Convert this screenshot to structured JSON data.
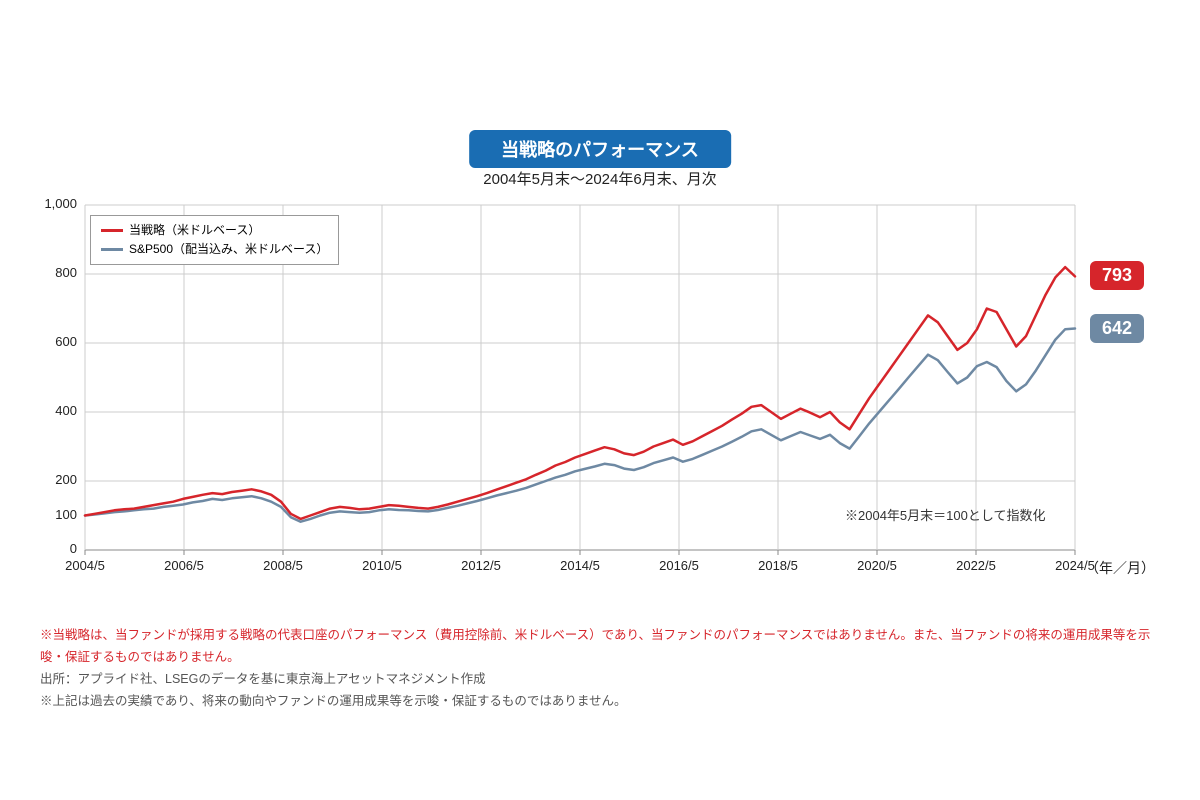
{
  "title": "当戦略のパフォーマンス",
  "subtitle": "2004年5月末～2024年6月末、月次",
  "chart": {
    "type": "line",
    "background_color": "#ffffff",
    "grid_color": "#cccccc",
    "axis_color": "#888888",
    "ylim": [
      0,
      1000
    ],
    "ytick_step": 200,
    "yticks": [
      0,
      100,
      200,
      400,
      600,
      800,
      1000
    ],
    "y_fontsize": 13,
    "x_labels": [
      "2004/5",
      "2006/5",
      "2008/5",
      "2010/5",
      "2012/5",
      "2014/5",
      "2016/5",
      "2018/5",
      "2020/5",
      "2022/5",
      "2024/5"
    ],
    "x_axis_unit": "（年／月）",
    "x_fontsize": 13,
    "line_width": 2.5,
    "inline_note": "※2004年5月末＝100として指数化",
    "legend": {
      "border_color": "#999999",
      "fontsize": 12,
      "items": [
        {
          "label": "当戦略（米ドルベース）",
          "color": "#d6252b"
        },
        {
          "label": "S&P500（配当込み、米ドルベース）",
          "color": "#6e89a3"
        }
      ]
    },
    "series": [
      {
        "name": "当戦略（米ドルベース）",
        "color": "#d6252b",
        "end_value": 793,
        "end_badge_color": "#d6252b",
        "values": [
          100,
          105,
          110,
          115,
          118,
          120,
          125,
          130,
          135,
          140,
          148,
          154,
          160,
          165,
          162,
          168,
          172,
          176,
          170,
          160,
          140,
          105,
          90,
          100,
          110,
          120,
          125,
          122,
          118,
          120,
          125,
          130,
          128,
          125,
          122,
          120,
          125,
          132,
          140,
          148,
          156,
          165,
          175,
          185,
          195,
          205,
          218,
          230,
          245,
          255,
          268,
          278,
          288,
          298,
          292,
          280,
          275,
          285,
          300,
          310,
          320,
          305,
          315,
          330,
          345,
          360,
          378,
          395,
          415,
          420,
          400,
          380,
          395,
          410,
          398,
          385,
          400,
          370,
          350,
          395,
          440,
          480,
          520,
          560,
          600,
          640,
          680,
          660,
          620,
          580,
          600,
          640,
          700,
          690,
          640,
          590,
          620,
          680,
          740,
          790,
          820,
          793
        ]
      },
      {
        "name": "S&P500（配当込み、米ドルベース）",
        "color": "#6e89a3",
        "end_value": 642,
        "end_badge_color": "#6e89a3",
        "values": [
          100,
          103,
          106,
          110,
          112,
          115,
          118,
          120,
          125,
          128,
          132,
          138,
          142,
          148,
          145,
          150,
          153,
          156,
          150,
          140,
          125,
          95,
          82,
          90,
          100,
          108,
          112,
          110,
          108,
          110,
          115,
          118,
          116,
          115,
          113,
          112,
          116,
          122,
          128,
          135,
          142,
          150,
          158,
          165,
          172,
          180,
          190,
          200,
          210,
          218,
          228,
          235,
          242,
          250,
          246,
          236,
          232,
          240,
          252,
          260,
          268,
          256,
          264,
          276,
          288,
          300,
          314,
          328,
          344,
          350,
          334,
          318,
          330,
          342,
          332,
          322,
          334,
          310,
          294,
          330,
          367,
          400,
          433,
          466,
          500,
          533,
          566,
          550,
          516,
          483,
          500,
          533,
          545,
          530,
          490,
          460,
          480,
          520,
          565,
          610,
          640,
          642
        ]
      }
    ]
  },
  "footnotes": {
    "disclaimer_red": "※当戦略は、当ファンドが採用する戦略の代表口座のパフォーマンス（費用控除前、米ドルベース）であり、当ファンドのパフォーマンスではありません。また、当ファンドの将来の運用成果等を示唆・保証するものではありません。",
    "source": "出所：アプライド社、LSEGのデータを基に東京海上アセットマネジメント作成",
    "disclaimer_gray": "※上記は過去の実績であり、将来の動向やファンドの運用成果等を示唆・保証するものではありません。"
  }
}
